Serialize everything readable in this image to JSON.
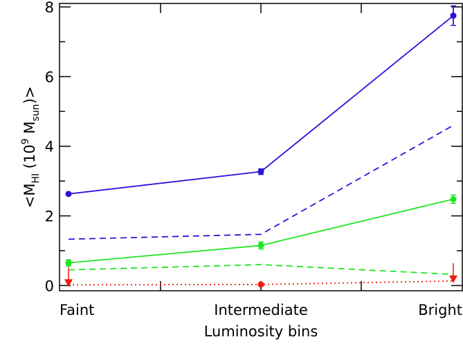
{
  "chart_data": {
    "type": "line",
    "xlabel": "Luminosity bins",
    "ylabel": {
      "open": "<M",
      "sub": "HI",
      "mid": " (10",
      "sup": "9",
      "unit": " M",
      "unit_sub": "sun",
      "close": ")>"
    },
    "categories": [
      "Faint",
      "Intermediate",
      "Bright"
    ],
    "ylim": [
      -0.15,
      8.1
    ],
    "yticks": [
      0,
      2,
      4,
      6,
      8
    ],
    "ytick_labels": [
      "0",
      "2",
      "4",
      "6",
      "8"
    ],
    "series": [
      {
        "color": "#2b14d6",
        "dash": "solid",
        "marker": "circle",
        "values": [
          2.63,
          3.27,
          7.75
        ],
        "errors": [
          0.03,
          0.08,
          0.28
        ]
      },
      {
        "color": "#2b14d6",
        "dash": "dashed",
        "marker": "none",
        "values": [
          1.33,
          1.47,
          4.6
        ],
        "errors": [
          0,
          0,
          0
        ]
      },
      {
        "color": "#1ee61e",
        "dash": "solid",
        "marker": "circle",
        "values": [
          0.65,
          1.15,
          2.48
        ],
        "errors": [
          0.09,
          0.1,
          0.12
        ]
      },
      {
        "color": "#1ee61e",
        "dash": "dashed",
        "marker": "none",
        "values": [
          0.45,
          0.6,
          0.32
        ],
        "errors": [
          0,
          0,
          0
        ]
      },
      {
        "color": "#ee1c0c",
        "dash": "dotted",
        "marker": "mixed",
        "values": [
          0.02,
          0.03,
          0.13
        ],
        "errors": [
          0,
          0,
          0
        ],
        "upper_limits": [
          true,
          false,
          true
        ]
      }
    ]
  }
}
